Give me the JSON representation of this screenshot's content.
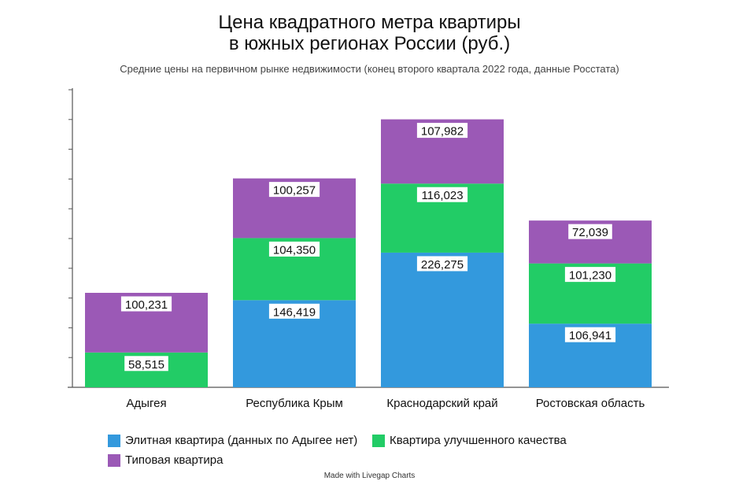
{
  "chart_data": {
    "type": "bar",
    "stacked": true,
    "title_line1": "Цена квадратного метра квартиры",
    "title_line2": "в южных регионах России (руб.)",
    "subtitle": "Средние цены на первичном рынке недвижимости (конец второго квартала 2022 года, данные Росстата)",
    "categories": [
      "Адыгея",
      "Республика Крым",
      "Краснодарский край",
      "Ростовская область"
    ],
    "series": [
      {
        "name": "Элитная квартира (данных по Адыгее нет)",
        "color": "#3399dd",
        "values": [
          null,
          146419,
          226275,
          106941
        ],
        "labels": [
          "",
          "146,419",
          "226,275",
          "106,941"
        ]
      },
      {
        "name": "Квартира улучшенного качества",
        "color": "#22cc66",
        "values": [
          58515,
          104350,
          116023,
          101230
        ],
        "labels": [
          "58,515",
          "104,350",
          "116,023",
          "101,230"
        ]
      },
      {
        "name": "Типовая квартира",
        "color": "#9b59b6",
        "values": [
          100231,
          100257,
          107982,
          72039
        ],
        "labels": [
          "100,231",
          "100,257",
          "107,982",
          "72,039"
        ]
      }
    ],
    "ylim": [
      0,
      500000
    ],
    "grid": false,
    "legend": "bottom"
  },
  "credit": "Made with Livegap Charts"
}
